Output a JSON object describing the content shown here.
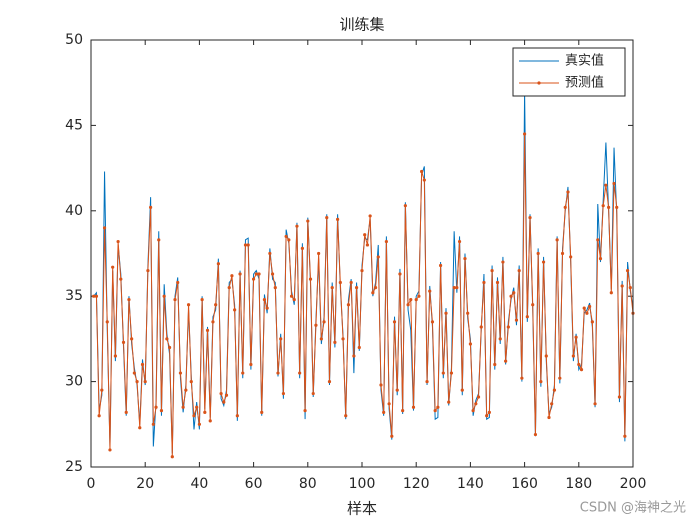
{
  "chart_data": {
    "type": "line",
    "title": "训练集",
    "xlabel": "样本",
    "xlim": [
      0,
      200
    ],
    "ylim": [
      25,
      50
    ],
    "xticks": [
      0,
      20,
      40,
      60,
      80,
      100,
      120,
      140,
      160,
      180,
      200
    ],
    "yticks": [
      25,
      30,
      35,
      40,
      45,
      50
    ],
    "legend": "northeast",
    "x": [
      1,
      2,
      3,
      4,
      5,
      6,
      7,
      8,
      9,
      10,
      11,
      12,
      13,
      14,
      15,
      16,
      17,
      18,
      19,
      20,
      21,
      22,
      23,
      24,
      25,
      26,
      27,
      28,
      29,
      30,
      31,
      32,
      33,
      34,
      35,
      36,
      37,
      38,
      39,
      40,
      41,
      42,
      43,
      44,
      45,
      46,
      47,
      48,
      49,
      50,
      51,
      52,
      53,
      54,
      55,
      56,
      57,
      58,
      59,
      60,
      61,
      62,
      63,
      64,
      65,
      66,
      67,
      68,
      69,
      70,
      71,
      72,
      73,
      74,
      75,
      76,
      77,
      78,
      79,
      80,
      81,
      82,
      83,
      84,
      85,
      86,
      87,
      88,
      89,
      90,
      91,
      92,
      93,
      94,
      95,
      96,
      97,
      98,
      99,
      100,
      101,
      102,
      103,
      104,
      105,
      106,
      107,
      108,
      109,
      110,
      111,
      112,
      113,
      114,
      115,
      116,
      117,
      118,
      119,
      120,
      121,
      122,
      123,
      124,
      125,
      126,
      127,
      128,
      129,
      130,
      131,
      132,
      133,
      134,
      135,
      136,
      137,
      138,
      139,
      140,
      141,
      142,
      143,
      144,
      145,
      146,
      147,
      148,
      149,
      150,
      151,
      152,
      153,
      154,
      155,
      156,
      157,
      158,
      159,
      160,
      161,
      162,
      163,
      164,
      165,
      166,
      167,
      168,
      169,
      170,
      171,
      172,
      173,
      174,
      175,
      176,
      177,
      178,
      179,
      180,
      181,
      182,
      183,
      184,
      185,
      186,
      187,
      188,
      189,
      190,
      191,
      192,
      193,
      194,
      195,
      196,
      197,
      198,
      199,
      200
    ],
    "series": [
      {
        "name": "真实值",
        "color": "#0072BD",
        "marker": false,
        "values": [
          35,
          35.2,
          28.3,
          29.2,
          42.3,
          33,
          26.2,
          36.5,
          31.2,
          38,
          36.3,
          32,
          28,
          35,
          32.2,
          30.8,
          29.8,
          27.5,
          31.3,
          29.8,
          36.8,
          40.8,
          26.2,
          28.8,
          38.8,
          28,
          35.7,
          32.8,
          31.6,
          25.8,
          35,
          36.1,
          30.2,
          28.2,
          29.8,
          34.2,
          30.3,
          27.2,
          28.8,
          27.2,
          35,
          28.4,
          33.2,
          27.9,
          33.8,
          34.2,
          37.2,
          29,
          28.6,
          29.5,
          35.8,
          36,
          34.5,
          27.7,
          36.5,
          30.2,
          38.3,
          38.4,
          30.7,
          36.3,
          36.5,
          36,
          28,
          35.1,
          34,
          37.8,
          36,
          35.8,
          30.3,
          32.8,
          29,
          38.9,
          38.1,
          35.3,
          34.5,
          39.3,
          30.2,
          38.1,
          27.8,
          39.6,
          35.7,
          29.1,
          33.6,
          37.2,
          32.2,
          33.8,
          39.8,
          29.8,
          35.8,
          32,
          39.8,
          35.5,
          32.7,
          27.8,
          34.8,
          36,
          30.5,
          35.8,
          31.8,
          36.8,
          38.4,
          38.3,
          39.5,
          35,
          35.8,
          38,
          29.5,
          28,
          38.5,
          28.4,
          26.6,
          33.8,
          29.2,
          36.6,
          28.1,
          40.5,
          34.2,
          33,
          28.3,
          35,
          35.3,
          42.1,
          42.6,
          29.8,
          35.6,
          33.2,
          27.8,
          27.9,
          37,
          30.2,
          34.3,
          28.6,
          30.8,
          38.8,
          35.2,
          38.5,
          29.2,
          37.5,
          33.7,
          32.5,
          28,
          28.9,
          29.3,
          33,
          36.3,
          27.8,
          27.9,
          36.8,
          30.7,
          36.1,
          32.2,
          37.3,
          31,
          33.5,
          34.8,
          35.5,
          33.3,
          36.8,
          30,
          47,
          33.5,
          39.8,
          34.2,
          26.8,
          37.8,
          29.7,
          37.3,
          31.2,
          28.1,
          28.5,
          29.8,
          38.5,
          29.9,
          37.8,
          40,
          41.4,
          37,
          31.2,
          32.8,
          30.7,
          31,
          34,
          34.2,
          34.6,
          33.2,
          28.5,
          40.4,
          37,
          40.6,
          44,
          40,
          35.4,
          43.7,
          39.8,
          28.8,
          35.9,
          26.5,
          37,
          35.3,
          34.3
        ]
      },
      {
        "name": "预测值",
        "color": "#D95319",
        "marker": true,
        "values": [
          35,
          35,
          28,
          29.5,
          39,
          33.5,
          26,
          36.7,
          31.5,
          38.2,
          36,
          32.3,
          28.2,
          34.8,
          32.5,
          30.5,
          30,
          27.3,
          31,
          30,
          36.5,
          40.2,
          27.5,
          28.5,
          38.3,
          28.3,
          35,
          32.5,
          32,
          25.6,
          34.8,
          35.8,
          30.5,
          28.5,
          29.5,
          34.5,
          30,
          28,
          28.5,
          27.5,
          34.8,
          28.2,
          33,
          27.7,
          33.5,
          34.5,
          36.9,
          29.3,
          28.8,
          29.2,
          35.5,
          36.2,
          34.2,
          28,
          36.3,
          30.5,
          38,
          38,
          31,
          36,
          36.3,
          36.3,
          28.2,
          34.8,
          34.3,
          37.5,
          36.3,
          35.5,
          30.5,
          32.5,
          29.3,
          38.5,
          38.3,
          35,
          34.8,
          39.1,
          30.5,
          37.8,
          28.3,
          39.4,
          36,
          29.3,
          33.3,
          37.5,
          32.5,
          33.5,
          39.6,
          30,
          35.5,
          32.3,
          39.5,
          35.8,
          32.5,
          28,
          34.5,
          35.8,
          31.5,
          35.5,
          32,
          36.5,
          38.6,
          38,
          39.7,
          35.2,
          35.5,
          37.3,
          29.8,
          28.2,
          38.2,
          28.7,
          26.8,
          33.5,
          29.5,
          36.3,
          28.3,
          40.3,
          34.5,
          34.8,
          28.5,
          34.8,
          35,
          42.3,
          41.8,
          30,
          35.3,
          33.5,
          28.3,
          28.5,
          36.8,
          30.5,
          34,
          28.8,
          30.5,
          35.5,
          35.5,
          38.2,
          29.5,
          37.2,
          34,
          32.2,
          28.3,
          28.7,
          29.1,
          33.2,
          35.8,
          28,
          28.2,
          36.5,
          31,
          35.8,
          32.5,
          37,
          31.2,
          33.2,
          35,
          35.2,
          33.6,
          36.5,
          30.2,
          44.5,
          33.8,
          39.6,
          34.5,
          26.9,
          37.5,
          30,
          37,
          31.5,
          27.9,
          28.7,
          29.5,
          38.3,
          30.2,
          37.5,
          40.2,
          41.1,
          37.3,
          31.5,
          32.6,
          31,
          30.7,
          34.3,
          34,
          34.4,
          33.5,
          28.7,
          38.3,
          37.2,
          40.3,
          41.5,
          40.2,
          35.2,
          41.6,
          40.2,
          29.1,
          35.6,
          26.8,
          36.5,
          35.5,
          34
        ]
      }
    ]
  },
  "watermark": "CSDN @海神之光"
}
